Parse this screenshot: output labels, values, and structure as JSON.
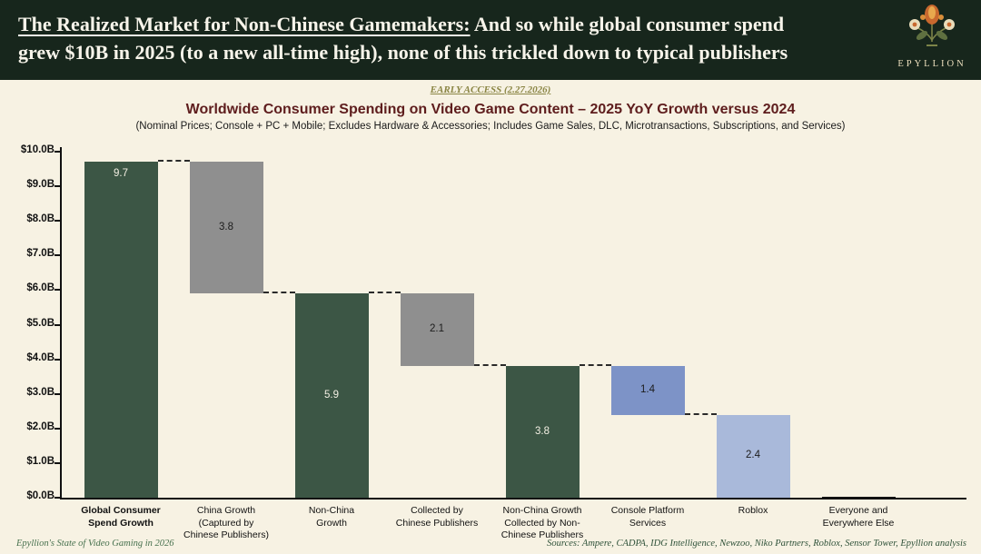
{
  "header": {
    "title_emphasis": "The Realized Market for Non-Chinese Gamemakers:",
    "title_line1_rest": " And so while global consumer spend",
    "title_line2": "grew $10B in 2025 (to a new all-time high), none of this trickled down to typical publishers",
    "logo_text": "EPYLLION"
  },
  "early_access": "EARLY ACCESS (2.27.2026)",
  "chart_data": {
    "type": "bar",
    "variant": "waterfall",
    "title": "Worldwide Consumer Spending on Video Game Content – 2025 YoY Growth versus 2024",
    "subtitle": "(Nominal Prices; Console + PC + Mobile; Excludes Hardware & Accessories; Includes Game Sales, DLC, Microtransactions, Subscriptions, and Services)",
    "ylim": [
      0,
      10
    ],
    "ytick_step": 1,
    "ytick_prefix": "$",
    "ytick_suffix": "B",
    "grid": false,
    "colors": {
      "total": "#3c5645",
      "decrease": "#8f8f8f",
      "platform": "#7d93c7",
      "roblox": "#a9b9da"
    },
    "bars": [
      {
        "category": "Global Consumer Spend Growth",
        "label_lines": [
          "Global Consumer",
          "Spend Growth"
        ],
        "bold": true,
        "base": 0,
        "top": 9.7,
        "value_label": "9.7",
        "color": "total",
        "value_label_style": "light",
        "value_label_at": "top"
      },
      {
        "category": "China Growth (Captured by Chinese Publishers)",
        "label_lines": [
          "China Growth",
          "(Captured by",
          "Chinese Publishers)"
        ],
        "bold": false,
        "base": 5.9,
        "top": 9.7,
        "value_label": "3.8",
        "color": "decrease",
        "value_label_style": "dark",
        "value_label_at": "center"
      },
      {
        "category": "Non-China Growth",
        "label_lines": [
          "Non-China",
          "Growth"
        ],
        "bold": false,
        "base": 0,
        "top": 5.9,
        "value_label": "5.9",
        "color": "total",
        "value_label_style": "light",
        "value_label_at": "center"
      },
      {
        "category": "Collected by Chinese Publishers",
        "label_lines": [
          "Collected by",
          "Chinese Publishers"
        ],
        "bold": false,
        "base": 3.8,
        "top": 5.9,
        "value_label": "2.1",
        "color": "decrease",
        "value_label_style": "dark",
        "value_label_at": "center"
      },
      {
        "category": "Non-China Growth Collected by Non-Chinese Publishers",
        "label_lines": [
          "Non-China Growth",
          "Collected by Non-",
          "Chinese Publishers"
        ],
        "bold": false,
        "base": 0,
        "top": 3.8,
        "value_label": "3.8",
        "color": "total",
        "value_label_style": "light",
        "value_label_at": "center"
      },
      {
        "category": "Console Platform Services",
        "label_lines": [
          "Console Platform",
          "Services"
        ],
        "bold": false,
        "base": 2.4,
        "top": 3.8,
        "value_label": "1.4",
        "color": "platform",
        "value_label_style": "dark",
        "value_label_at": "center"
      },
      {
        "category": "Roblox",
        "label_lines": [
          "Roblox"
        ],
        "bold": false,
        "base": 0,
        "top": 2.4,
        "value_label": "2.4",
        "color": "roblox",
        "value_label_style": "dark",
        "value_label_at": "center"
      },
      {
        "category": "Everyone and Everywhere Else",
        "label_lines": [
          "Everyone and",
          "Everywhere Else"
        ],
        "bold": false,
        "base": 0,
        "top": 0,
        "value_label": "",
        "color": "total",
        "value_label_style": "dark",
        "value_label_at": "center"
      }
    ]
  },
  "footer": {
    "left": "Epyllion's State of Video Gaming in 2026",
    "right": "Sources: Ampere, CADPA, IDG Intelligence, Newzoo, Niko Partners, Roblox, Sensor Tower, Epyllion analysis"
  }
}
